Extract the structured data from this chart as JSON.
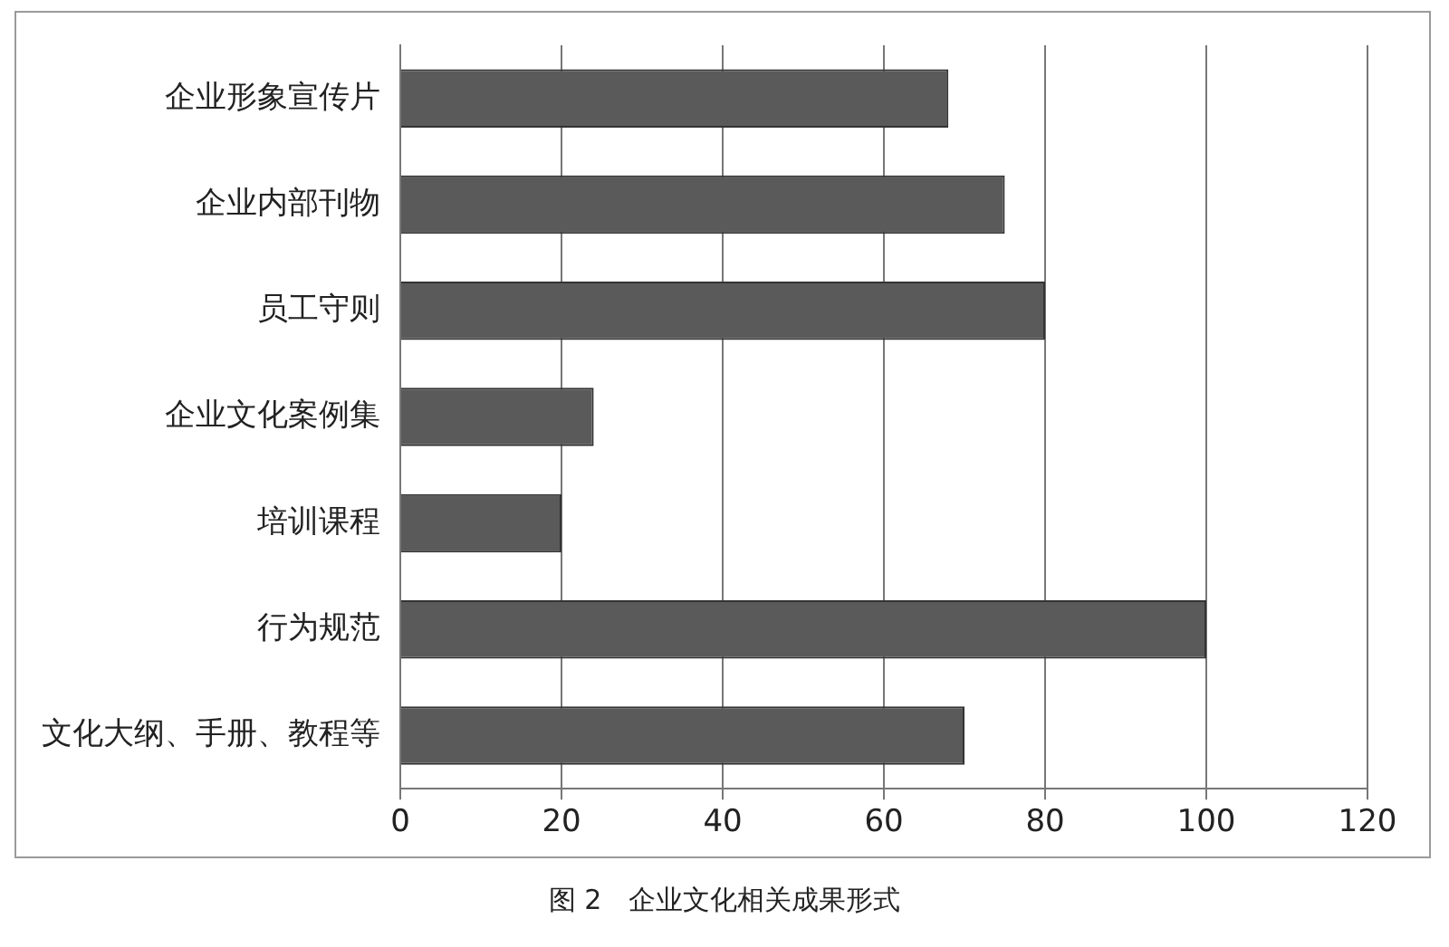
{
  "chart_data": {
    "type": "bar",
    "orientation": "horizontal",
    "categories": [
      "企业形象宣传片",
      "企业内部刊物",
      "员工守则",
      "企业文化案例集",
      "培训课程",
      "行为规范",
      "文化大纲、手册、教程等"
    ],
    "values": [
      68,
      75,
      80,
      24,
      20,
      100,
      70
    ],
    "color": "#5a5a5a",
    "xlim": [
      0,
      120
    ],
    "xticks": [
      0,
      20,
      40,
      60,
      80,
      100,
      120
    ],
    "grid": "x",
    "annotations": [
      "图 2　企业文化相关成果形式"
    ]
  }
}
